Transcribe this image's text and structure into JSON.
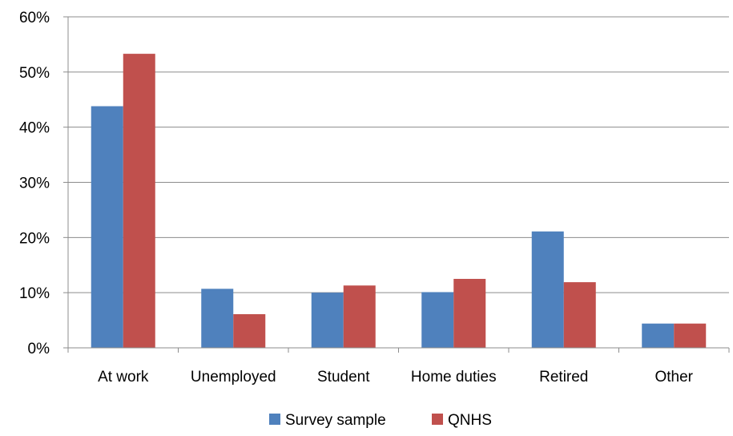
{
  "chart_data": {
    "type": "bar",
    "categories": [
      "At work",
      "Unemployed",
      "Student",
      "Home duties",
      "Retired",
      "Other"
    ],
    "series": [
      {
        "name": "Survey sample",
        "color": "#4f81bd",
        "values": [
          43.8,
          10.7,
          10.0,
          10.1,
          21.1,
          4.4
        ]
      },
      {
        "name": "QNHS",
        "color": "#c0504d",
        "values": [
          53.3,
          6.1,
          11.3,
          12.5,
          11.9,
          4.4
        ]
      }
    ],
    "y_ticks": [
      "0%",
      "10%",
      "20%",
      "30%",
      "40%",
      "50%",
      "60%"
    ],
    "ylim": [
      0,
      60
    ],
    "grid": true,
    "legend_position": "bottom"
  }
}
